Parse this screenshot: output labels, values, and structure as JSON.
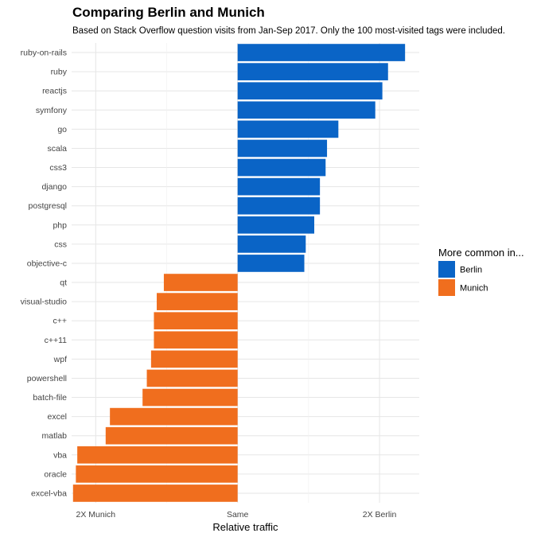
{
  "chart_data": {
    "type": "bar",
    "orientation": "horizontal",
    "title": "Comparing Berlin and Munich",
    "subtitle": "Based on Stack Overflow question visits from Jan-Sep 2017. Only the 100 most-visited tags were included.",
    "xlabel": "Relative traffic",
    "ylabel": "",
    "x_scale": "log2",
    "xlim_log2": [
      -1.17,
      1.28
    ],
    "x_ticks": [
      {
        "log2": -1,
        "label": "2X Munich"
      },
      {
        "log2": 0,
        "label": "Same"
      },
      {
        "log2": 1,
        "label": "2X Berlin"
      }
    ],
    "categories": [
      "ruby-on-rails",
      "ruby",
      "reactjs",
      "symfony",
      "go",
      "scala",
      "css3",
      "django",
      "postgresql",
      "php",
      "css",
      "objective-c",
      "qt",
      "visual-studio",
      "c++",
      "c++11",
      "wpf",
      "powershell",
      "batch-file",
      "excel",
      "matlab",
      "vba",
      "oracle",
      "excel-vba"
    ],
    "values_log2": [
      1.18,
      1.06,
      1.02,
      0.97,
      0.71,
      0.63,
      0.62,
      0.58,
      0.58,
      0.54,
      0.48,
      0.47,
      -0.52,
      -0.57,
      -0.59,
      -0.59,
      -0.61,
      -0.64,
      -0.67,
      -0.9,
      -0.93,
      -1.13,
      -1.14,
      -1.16
    ],
    "legend": {
      "title": "More common in...",
      "position": "right",
      "items": [
        {
          "label": "Berlin",
          "color": "#0A64C6"
        },
        {
          "label": "Munich",
          "color": "#F06E1E"
        }
      ]
    },
    "grid": true
  }
}
